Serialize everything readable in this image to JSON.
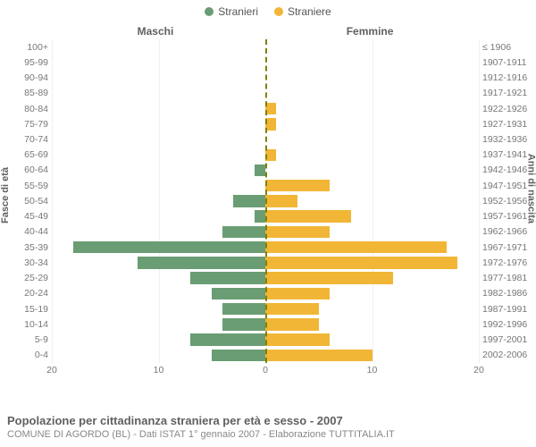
{
  "legend": {
    "male": {
      "label": "Stranieri",
      "color": "#6a9d73"
    },
    "female": {
      "label": "Straniere",
      "color": "#f2b636"
    }
  },
  "headers": {
    "left": "Maschi",
    "right": "Femmine"
  },
  "yAxis": {
    "left": "Fasce di età",
    "right": "Anni di nascita"
  },
  "xAxis": {
    "max": 20,
    "ticks": [
      20,
      10,
      0,
      10,
      20
    ]
  },
  "centerLineColor": "#808000",
  "rows": [
    {
      "age": "100+",
      "birth": "≤ 1906",
      "m": 0,
      "f": 0
    },
    {
      "age": "95-99",
      "birth": "1907-1911",
      "m": 0,
      "f": 0
    },
    {
      "age": "90-94",
      "birth": "1912-1916",
      "m": 0,
      "f": 0
    },
    {
      "age": "85-89",
      "birth": "1917-1921",
      "m": 0,
      "f": 0
    },
    {
      "age": "80-84",
      "birth": "1922-1926",
      "m": 0,
      "f": 1
    },
    {
      "age": "75-79",
      "birth": "1927-1931",
      "m": 0,
      "f": 1
    },
    {
      "age": "70-74",
      "birth": "1932-1936",
      "m": 0,
      "f": 0
    },
    {
      "age": "65-69",
      "birth": "1937-1941",
      "m": 0,
      "f": 1
    },
    {
      "age": "60-64",
      "birth": "1942-1946",
      "m": 1,
      "f": 0
    },
    {
      "age": "55-59",
      "birth": "1947-1951",
      "m": 0,
      "f": 6
    },
    {
      "age": "50-54",
      "birth": "1952-1956",
      "m": 3,
      "f": 3
    },
    {
      "age": "45-49",
      "birth": "1957-1961",
      "m": 1,
      "f": 8
    },
    {
      "age": "40-44",
      "birth": "1962-1966",
      "m": 4,
      "f": 6
    },
    {
      "age": "35-39",
      "birth": "1967-1971",
      "m": 18,
      "f": 17
    },
    {
      "age": "30-34",
      "birth": "1972-1976",
      "m": 12,
      "f": 18
    },
    {
      "age": "25-29",
      "birth": "1977-1981",
      "m": 7,
      "f": 12
    },
    {
      "age": "20-24",
      "birth": "1982-1986",
      "m": 5,
      "f": 6
    },
    {
      "age": "15-19",
      "birth": "1987-1991",
      "m": 4,
      "f": 5
    },
    {
      "age": "10-14",
      "birth": "1992-1996",
      "m": 4,
      "f": 5
    },
    {
      "age": "5-9",
      "birth": "1997-2001",
      "m": 7,
      "f": 6
    },
    {
      "age": "0-4",
      "birth": "2002-2006",
      "m": 5,
      "f": 10
    }
  ],
  "footer": {
    "title": "Popolazione per cittadinanza straniera per età e sesso - 2007",
    "subtitle": "COMUNE DI AGORDO (BL) - Dati ISTAT 1° gennaio 2007 - Elaborazione TUTTITALIA.IT"
  }
}
